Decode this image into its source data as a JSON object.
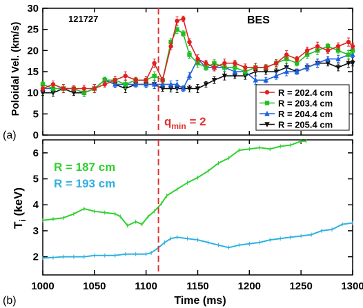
{
  "chart_data": [
    {
      "panel_label": "(a)",
      "type": "line",
      "shot_label": "121727",
      "diagnostic_label": "BES",
      "ylabel": "Poloidal Vel. (km/s)",
      "ylim": [
        0,
        30
      ],
      "yticks": [
        0,
        5,
        10,
        15,
        20,
        25,
        30
      ],
      "xlim": [
        1000,
        1300
      ],
      "annotation": {
        "text": "q",
        "sub": "min",
        "suffix": " = 2",
        "x": 1112,
        "color": "#e03030"
      },
      "series": [
        {
          "name": "R = 202.4 cm",
          "color": "#e02020",
          "marker": "circle",
          "x": [
            1000,
            1010,
            1020,
            1030,
            1040,
            1050,
            1060,
            1070,
            1080,
            1090,
            1100,
            1108,
            1116,
            1124,
            1130,
            1136,
            1142,
            1150,
            1158,
            1166,
            1176,
            1186,
            1196,
            1206,
            1216,
            1226,
            1236,
            1246,
            1256,
            1266,
            1276,
            1286,
            1296,
            1300
          ],
          "y": [
            11,
            12,
            11,
            11,
            11,
            11,
            12,
            13,
            14,
            13,
            13,
            17,
            13,
            21,
            27,
            27.5,
            22,
            18,
            17,
            16,
            17,
            17,
            16,
            16,
            16,
            17,
            19,
            18,
            20,
            21,
            20,
            21,
            22,
            21
          ]
        },
        {
          "name": "R = 203.4 cm",
          "color": "#20c020",
          "marker": "square",
          "x": [
            1000,
            1010,
            1020,
            1030,
            1040,
            1050,
            1060,
            1070,
            1080,
            1090,
            1100,
            1108,
            1116,
            1124,
            1130,
            1136,
            1142,
            1150,
            1158,
            1166,
            1176,
            1186,
            1196,
            1206,
            1216,
            1226,
            1236,
            1246,
            1256,
            1266,
            1276,
            1286,
            1296,
            1300
          ],
          "y": [
            12,
            11,
            11,
            11,
            10,
            11,
            13,
            13,
            12,
            13,
            13,
            14,
            13,
            22,
            25,
            24,
            19,
            17,
            16,
            17,
            16,
            16,
            15,
            16,
            16,
            17,
            18,
            17,
            19,
            20,
            21,
            20,
            19,
            20
          ]
        },
        {
          "name": "R = 204.4 cm",
          "color": "#2060e0",
          "marker": "triangle",
          "x": [
            1000,
            1010,
            1020,
            1030,
            1040,
            1050,
            1060,
            1070,
            1080,
            1090,
            1100,
            1108,
            1116,
            1124,
            1130,
            1136,
            1142,
            1150,
            1158,
            1166,
            1176,
            1186,
            1196,
            1206,
            1216,
            1226,
            1236,
            1246,
            1256,
            1266,
            1276,
            1286,
            1296,
            1300
          ],
          "y": [
            11,
            11,
            11,
            11,
            10,
            11,
            13,
            12,
            12,
            12,
            12,
            12,
            12,
            12,
            12,
            11,
            14,
            18,
            16,
            16,
            16,
            15,
            15,
            13,
            13,
            14,
            15,
            15,
            16,
            17,
            18,
            18,
            19,
            19
          ]
        },
        {
          "name": "R = 205.4 cm",
          "color": "#101010",
          "marker": "inverted-triangle",
          "x": [
            1000,
            1010,
            1020,
            1030,
            1040,
            1050,
            1060,
            1070,
            1080,
            1090,
            1100,
            1108,
            1116,
            1124,
            1130,
            1136,
            1142,
            1150,
            1158,
            1166,
            1176,
            1186,
            1196,
            1206,
            1216,
            1226,
            1236,
            1246,
            1256,
            1266,
            1276,
            1286,
            1296,
            1300
          ],
          "y": [
            10,
            10,
            11,
            10,
            10,
            11,
            13,
            12,
            11,
            12,
            12,
            12,
            11,
            11,
            11,
            11,
            11,
            11,
            12,
            13,
            14,
            14,
            14,
            15,
            15,
            15,
            16,
            15,
            16,
            17,
            17,
            16,
            17,
            17
          ]
        }
      ]
    },
    {
      "panel_label": "(b)",
      "type": "line",
      "ylabel": "T",
      "ylabel_sub": "i",
      "ylabel_suffix": " (keV)",
      "ylim": [
        1.3,
        6.5
      ],
      "yticks": [
        2,
        3,
        4,
        5,
        6
      ],
      "xlim": [
        1000,
        1300
      ],
      "xticks": [
        1000,
        1050,
        1100,
        1150,
        1200,
        1250,
        1300
      ],
      "xlabel": "Time (ms)",
      "annotation": {
        "x": 1112,
        "color": "#e03030"
      },
      "series": [
        {
          "name": "R = 187 cm",
          "color": "#30d030",
          "x": [
            1000,
            1010,
            1020,
            1030,
            1040,
            1050,
            1060,
            1070,
            1075,
            1082,
            1090,
            1096,
            1102,
            1108,
            1115,
            1120,
            1130,
            1140,
            1150,
            1160,
            1170,
            1180,
            1190,
            1200,
            1210,
            1220,
            1230,
            1240,
            1250,
            1255
          ],
          "y": [
            3.4,
            3.45,
            3.5,
            3.65,
            3.85,
            3.75,
            3.7,
            3.65,
            3.55,
            3.2,
            3.35,
            3.25,
            3.55,
            3.75,
            4.05,
            4.35,
            4.6,
            4.85,
            5.05,
            5.3,
            5.6,
            5.8,
            6.1,
            6.15,
            6.2,
            6.15,
            6.25,
            6.3,
            6.45,
            6.45
          ]
        },
        {
          "name": "R = 193 cm",
          "color": "#30b0e0",
          "x": [
            1000,
            1010,
            1020,
            1030,
            1040,
            1050,
            1060,
            1070,
            1080,
            1090,
            1100,
            1105,
            1112,
            1118,
            1124,
            1130,
            1140,
            1150,
            1160,
            1170,
            1180,
            1190,
            1200,
            1210,
            1220,
            1230,
            1240,
            1250,
            1260,
            1270,
            1280,
            1290,
            1300
          ],
          "y": [
            1.95,
            1.97,
            2.0,
            2.0,
            2.0,
            2.05,
            2.05,
            2.05,
            2.1,
            2.1,
            2.1,
            2.15,
            2.35,
            2.55,
            2.7,
            2.75,
            2.7,
            2.65,
            2.55,
            2.45,
            2.35,
            2.45,
            2.5,
            2.55,
            2.65,
            2.7,
            2.75,
            2.8,
            2.85,
            3.0,
            3.05,
            3.25,
            3.3
          ]
        }
      ]
    }
  ]
}
